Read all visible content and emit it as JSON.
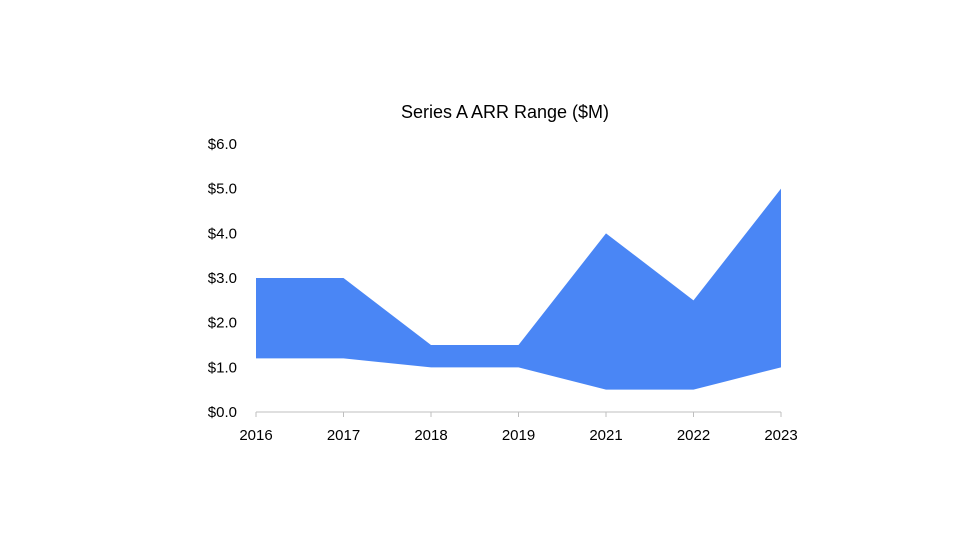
{
  "chart_data": {
    "type": "area",
    "title": "Series A ARR Range ($M)",
    "xlabel": "",
    "ylabel": "",
    "categories": [
      "2016",
      "2017",
      "2018",
      "2019",
      "2021",
      "2022",
      "2023"
    ],
    "series": [
      {
        "role": "low",
        "values": [
          1.2,
          1.2,
          1.0,
          1.0,
          0.5,
          0.5,
          1.0
        ]
      },
      {
        "role": "high",
        "values": [
          3.0,
          3.0,
          1.5,
          1.5,
          4.0,
          2.5,
          5.0
        ]
      }
    ],
    "ylim": [
      0,
      6
    ],
    "yticks": [
      "$0.0",
      "$1.0",
      "$2.0",
      "$3.0",
      "$4.0",
      "$5.0",
      "$6.0"
    ],
    "grid": false,
    "legend": "none",
    "colors": {
      "fill": "#4A86F5",
      "axis": "#BFBFBF"
    }
  }
}
